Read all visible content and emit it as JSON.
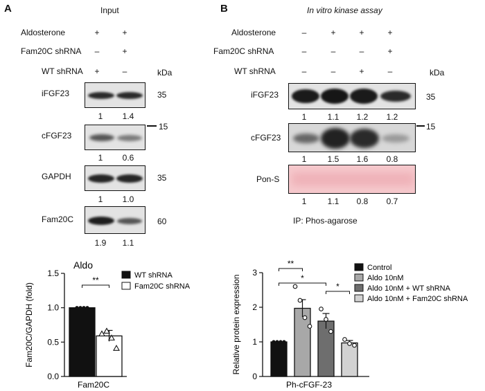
{
  "panelA": {
    "letter": "A",
    "title": "Input",
    "rows": [
      {
        "label": "Aldosterone",
        "signs": [
          "+",
          "+"
        ]
      },
      {
        "label": "Fam20C shRNA",
        "signs": [
          "–",
          "+"
        ]
      },
      {
        "label": "WT shRNA",
        "signs": [
          "+",
          "–"
        ]
      }
    ],
    "kda": "kDa",
    "blots": [
      {
        "label": "iFGF23",
        "mw": "35",
        "values": [
          "1",
          "1.4"
        ]
      },
      {
        "label": "cFGF23",
        "mw": "15",
        "values": [
          "1",
          "0.6"
        ]
      },
      {
        "label": "GAPDH",
        "mw": "35",
        "values": [
          "1",
          "1.0"
        ]
      },
      {
        "label": "Fam20C",
        "mw": "60",
        "values": [
          "1.9",
          "1.1"
        ]
      }
    ]
  },
  "panelB": {
    "letter": "B",
    "title": "In vitro kinase assay",
    "rows": [
      {
        "label": "Aldosterone",
        "signs": [
          "–",
          "+",
          "+",
          "+"
        ]
      },
      {
        "label": "Fam20C shRNA",
        "signs": [
          "–",
          "–",
          "–",
          "+"
        ]
      },
      {
        "label": "WT shRNA",
        "signs": [
          "–",
          "–",
          "+",
          "–"
        ]
      }
    ],
    "kda": "kDa",
    "blots": [
      {
        "label": "iFGF23",
        "mw": "35",
        "values": [
          "1",
          "1.1",
          "1.2",
          "1.2"
        ]
      },
      {
        "label": "cFGF23",
        "mw": "15",
        "values": [
          "1",
          "1.5",
          "1.6",
          "0.8"
        ]
      },
      {
        "label": "Pon-S",
        "mw": "",
        "values": [
          "1",
          "1.1",
          "0.8",
          "0.7"
        ]
      }
    ],
    "ip": "IP: Phos-agarose"
  },
  "colors": {
    "black": "#111111",
    "white": "#ffffff",
    "grey1": "#a8a8a8",
    "grey2": "#6e6e6e",
    "grey3": "#d2d2d2",
    "ponceau": "#f6c9cd"
  },
  "chart_data": [
    {
      "type": "bar",
      "title": "Aldo",
      "categories": [
        "Fam20C"
      ],
      "ylabel": "Fam20C/GAPDH (fold)",
      "ylim": [
        0,
        1.5
      ],
      "yticks": [
        "0.0",
        "0.5",
        "1.0",
        "1.5"
      ],
      "series": [
        {
          "name": "WT shRNA",
          "values": [
            1.0
          ],
          "error": [
            0.0
          ],
          "points": [
            1.0,
            1.0,
            1.0,
            1.0
          ],
          "color": "#111111"
        },
        {
          "name": "Fam20C shRNA",
          "values": [
            0.59
          ],
          "error": [
            0.08
          ],
          "points": [
            0.62,
            0.66,
            0.56,
            0.41
          ],
          "color": "#ffffff"
        }
      ],
      "significance": [
        {
          "label": "**"
        }
      ],
      "legend_position": "top-right"
    },
    {
      "type": "bar",
      "title": "",
      "categories": [
        "Ph-cFGF-23"
      ],
      "ylabel": "Relative protein expression",
      "ylim": [
        0,
        3
      ],
      "yticks": [
        "0",
        "1",
        "2",
        "3"
      ],
      "series": [
        {
          "name": "Control",
          "values": [
            1.0
          ],
          "error": [
            0.0
          ],
          "points": [
            1.0,
            1.0,
            1.0,
            1.0
          ],
          "color": "#111111"
        },
        {
          "name": "Aldo 10nM",
          "values": [
            1.97
          ],
          "error": [
            0.25
          ],
          "points": [
            2.6,
            2.2,
            1.7,
            1.45
          ],
          "color": "#a8a8a8"
        },
        {
          "name": "Aldo 10nM + WT shRNA",
          "values": [
            1.6
          ],
          "error": [
            0.22
          ],
          "points": [
            1.95,
            1.65,
            1.3
          ],
          "color": "#6e6e6e"
        },
        {
          "name": "Aldo 10nM + Fam20C shRNA",
          "values": [
            0.97
          ],
          "error": [
            0.07
          ],
          "points": [
            1.07,
            0.95,
            0.9
          ],
          "color": "#d2d2d2"
        }
      ],
      "significance": [
        {
          "label": "**"
        },
        {
          "label": "*"
        },
        {
          "label": "*"
        }
      ],
      "legend_position": "top-right"
    }
  ]
}
